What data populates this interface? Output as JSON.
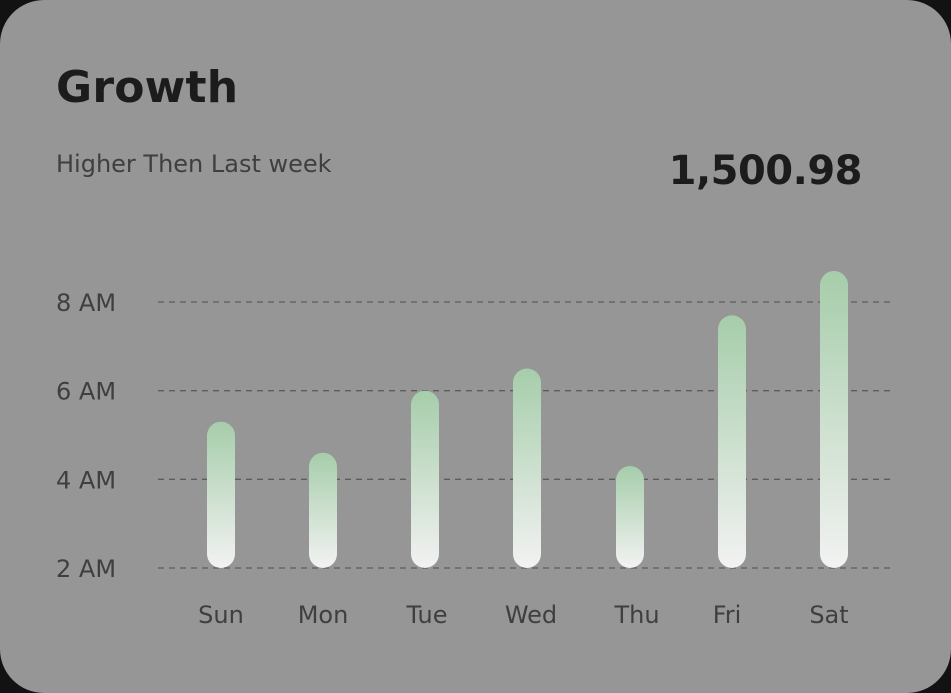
{
  "card": {
    "title": "Growth",
    "subtitle": "Higher Then Last week",
    "total": "1,500.98"
  },
  "colors": {
    "card_bg": "#969696",
    "bar_top": "#a6cdaa",
    "bar_bottom": "#f2f2f2",
    "grid": "#5c5c5c",
    "label": "#3f3f3f"
  },
  "chart_data": {
    "type": "bar",
    "title": "",
    "xlabel": "",
    "ylabel": "",
    "categories": [
      "Sun",
      "Mon",
      "Tue",
      "Wed",
      "Thu",
      "Fri",
      "Sat"
    ],
    "values": [
      5.3,
      4.6,
      6.0,
      6.5,
      4.3,
      7.7,
      8.7
    ],
    "yticks": [
      2,
      4,
      6,
      8
    ],
    "ytick_labels": [
      "2 AM",
      "4 AM",
      "6 AM",
      "8 AM"
    ],
    "ylim": [
      2,
      8
    ],
    "grid": "horizontal dashed",
    "legend": "none"
  }
}
